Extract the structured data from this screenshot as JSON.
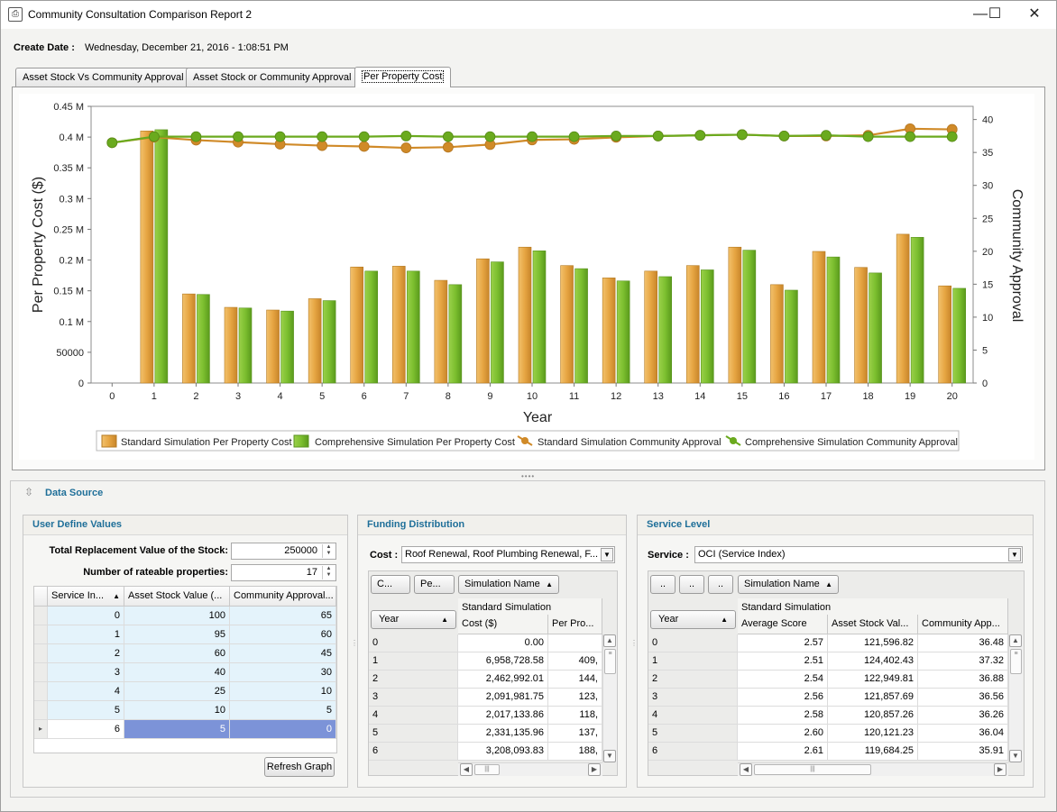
{
  "window": {
    "title": "Community Consultation Comparison Report 2",
    "minimize": "—",
    "maximize": "☐",
    "close": "✕"
  },
  "header": {
    "create_label": "Create Date :",
    "create_value": "Wednesday, December 21, 2016 - 1:08:51 PM"
  },
  "tabs": [
    {
      "label": "Asset Stock Vs Community Approval"
    },
    {
      "label": "Asset Stock or Community Approval"
    },
    {
      "label": "Per Property Cost"
    }
  ],
  "chart_data": {
    "type": "bar",
    "xlabel": "Year",
    "ylabel": "Per Property Cost ($)",
    "y2label": "Community Approval",
    "categories": [
      "0",
      "1",
      "2",
      "3",
      "4",
      "5",
      "6",
      "7",
      "8",
      "9",
      "10",
      "11",
      "12",
      "13",
      "14",
      "15",
      "16",
      "17",
      "18",
      "19",
      "20"
    ],
    "ylim": [
      0,
      450000
    ],
    "y2lim": [
      0,
      42
    ],
    "yticks": [
      {
        "v": 0,
        "label": "0"
      },
      {
        "v": 50000,
        "label": "50000"
      },
      {
        "v": 100000,
        "label": "0.1 M"
      },
      {
        "v": 150000,
        "label": "0.15 M"
      },
      {
        "v": 200000,
        "label": "0.2 M"
      },
      {
        "v": 250000,
        "label": "0.25 M"
      },
      {
        "v": 300000,
        "label": "0.3 M"
      },
      {
        "v": 350000,
        "label": "0.35 M"
      },
      {
        "v": 400000,
        "label": "0.4 M"
      },
      {
        "v": 450000,
        "label": "0.45 M"
      }
    ],
    "y2ticks": [
      0,
      5,
      10,
      15,
      20,
      25,
      30,
      35,
      40
    ],
    "series": [
      {
        "name": "Standard Simulation Per Property Cost",
        "kind": "bar",
        "color": "#e0a040",
        "values": [
          0,
          409925,
          144882,
          123058,
          118702,
          137127,
          188711,
          190000,
          167000,
          202000,
          221000,
          191000,
          171000,
          182000,
          191000,
          221000,
          160000,
          214000,
          188000,
          242000,
          158000
        ]
      },
      {
        "name": "Comprehensive Simulation Per Property Cost",
        "kind": "bar",
        "color": "#7bbf2e",
        "values": [
          0,
          412000,
          144000,
          122000,
          117000,
          134000,
          182000,
          182000,
          160000,
          197000,
          215000,
          186000,
          166000,
          173000,
          184000,
          216000,
          151000,
          205000,
          179000,
          237000,
          154000
        ]
      },
      {
        "name": "Standard Simulation Community Approval",
        "kind": "line",
        "color": "#d08a28",
        "values": [
          36.48,
          37.32,
          36.88,
          36.56,
          36.26,
          36.04,
          35.91,
          35.7,
          35.8,
          36.2,
          36.9,
          37.0,
          37.3,
          37.5,
          37.6,
          37.7,
          37.5,
          37.5,
          37.6,
          38.6,
          38.5
        ]
      },
      {
        "name": "Comprehensive Simulation Community Approval",
        "kind": "line",
        "color": "#6aaa1e",
        "values": [
          36.48,
          37.4,
          37.4,
          37.4,
          37.4,
          37.4,
          37.4,
          37.5,
          37.4,
          37.4,
          37.4,
          37.4,
          37.5,
          37.5,
          37.6,
          37.7,
          37.5,
          37.6,
          37.4,
          37.4,
          37.4
        ]
      }
    ]
  },
  "datasource": {
    "title": "Data Source"
  },
  "user_define": {
    "title": "User Define Values",
    "trv_label": "Total Replacement Value of the Stock:",
    "trv_value": "250000",
    "nrp_label": "Number of rateable properties:",
    "nrp_value": "17",
    "columns": [
      "Service In...",
      "Asset Stock Value (...",
      "Community Approval..."
    ],
    "rows": [
      [
        "0",
        "100",
        "65"
      ],
      [
        "1",
        "95",
        "60"
      ],
      [
        "2",
        "60",
        "45"
      ],
      [
        "3",
        "40",
        "30"
      ],
      [
        "4",
        "25",
        "10"
      ],
      [
        "5",
        "10",
        "5"
      ],
      [
        "6",
        "5",
        "0"
      ]
    ],
    "refresh": "Refresh Graph"
  },
  "funding": {
    "title": "Funding Distribution",
    "cost_label": "Cost :",
    "cost_value": "Roof Renewal, Roof Plumbing Renewal, F...",
    "buttons": [
      "C...",
      "Pe...",
      "Simulation Name"
    ],
    "band": "Standard Simulation",
    "year_col": "Year",
    "columns": [
      "Cost ($)",
      "Per Pro..."
    ],
    "rows": [
      [
        "0",
        "0.00",
        ""
      ],
      [
        "1",
        "6,958,728.58",
        "409,"
      ],
      [
        "2",
        "2,462,992.01",
        "144,"
      ],
      [
        "3",
        "2,091,981.75",
        "123,"
      ],
      [
        "4",
        "2,017,133.86",
        "118,"
      ],
      [
        "5",
        "2,331,135.96",
        "137,"
      ],
      [
        "6",
        "3,208,093.83",
        "188,"
      ]
    ]
  },
  "service": {
    "title": "Service Level",
    "service_label": "Service :",
    "service_value": "OCI (Service Index)",
    "buttons": [
      "..",
      "..",
      "..",
      "Simulation Name"
    ],
    "band": "Standard Simulation",
    "year_col": "Year",
    "columns": [
      "Average Score",
      "Asset Stock Val...",
      "Community App..."
    ],
    "rows": [
      [
        "0",
        "2.57",
        "121,596.82",
        "36.48"
      ],
      [
        "1",
        "2.51",
        "124,402.43",
        "37.32"
      ],
      [
        "2",
        "2.54",
        "122,949.81",
        "36.88"
      ],
      [
        "3",
        "2.56",
        "121,857.69",
        "36.56"
      ],
      [
        "4",
        "2.58",
        "120,857.26",
        "36.26"
      ],
      [
        "5",
        "2.60",
        "120,121.23",
        "36.04"
      ],
      [
        "6",
        "2.61",
        "119,684.25",
        "35.91"
      ]
    ]
  }
}
